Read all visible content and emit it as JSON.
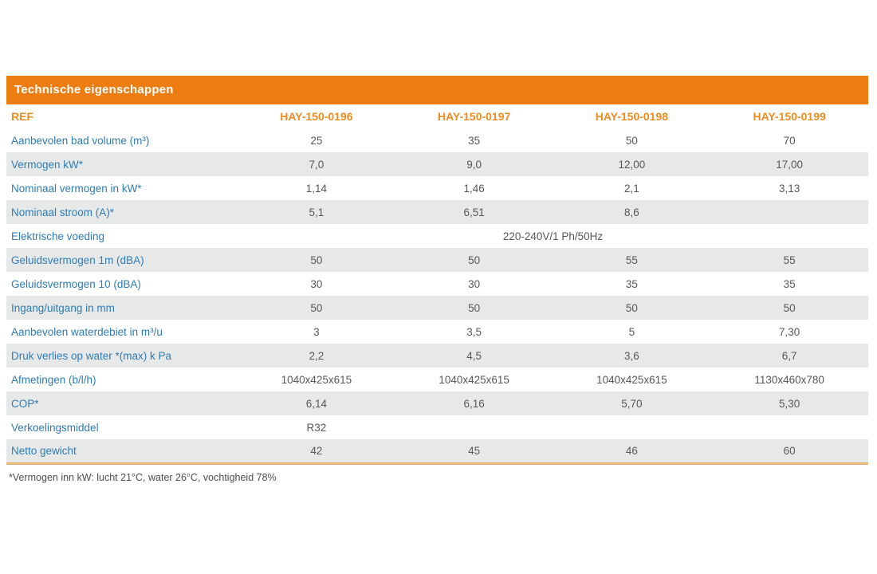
{
  "colors": {
    "header_bar_bg": "#ee7d11",
    "header_bar_text": "#ffffff",
    "column_header_text": "#ef8c1f",
    "row_label_text": "#2e7cb5",
    "value_text": "#55575a",
    "alt_row_bg": "#e7e9e9",
    "table_bottom_border": "#e9b476"
  },
  "table": {
    "title": "Technische eigenschappen",
    "ref_label": "REF",
    "columns": [
      "HAY-150-0196",
      "HAY-150-0197",
      "HAY-150-0198",
      "HAY-150-0199"
    ],
    "rows": [
      {
        "label": "Aanbevolen bad volume (m³)",
        "values": [
          "25",
          "35",
          "50",
          "70"
        ]
      },
      {
        "label": "Vermogen kW*",
        "values": [
          "7,0",
          "9,0",
          "12,00",
          "17,00"
        ]
      },
      {
        "label": "Nominaal vermogen in kW*",
        "values": [
          "1,14",
          "1,46",
          "2,1",
          "3,13"
        ]
      },
      {
        "label": "Nominaal stroom (A)*",
        "values": [
          "5,1",
          "6,51",
          "8,6",
          ""
        ]
      },
      {
        "label": "Elektrische voeding",
        "span_value": "220-240V/1 Ph/50Hz"
      },
      {
        "label": "Geluidsvermogen 1m (dBA)",
        "values": [
          "50",
          "50",
          "55",
          "55"
        ]
      },
      {
        "label": "Geluidsvermogen 10 (dBA)",
        "values": [
          "30",
          "30",
          "35",
          "35"
        ]
      },
      {
        "label": "Ingang/uitgang in mm",
        "values": [
          "50",
          "50",
          "50",
          "50"
        ]
      },
      {
        "label": "Aanbevolen waterdebiet in m³/u",
        "values": [
          "3",
          "3,5",
          "5",
          "7,30"
        ]
      },
      {
        "label": "Druk verlies op water *(max) k Pa",
        "values": [
          "2,2",
          "4,5",
          "3,6",
          "6,7"
        ]
      },
      {
        "label": "Afmetingen (b/l/h)",
        "values": [
          "1040x425x615",
          "1040x425x615",
          "1040x425x615",
          "1130x460x780"
        ]
      },
      {
        "label": "COP*",
        "values": [
          "6,14",
          "6,16",
          "5,70",
          "5,30"
        ]
      },
      {
        "label": "Verkoelingsmiddel",
        "values": [
          "R32",
          "",
          "",
          ""
        ]
      },
      {
        "label": "Netto gewicht",
        "values": [
          "42",
          "45",
          "46",
          "60"
        ]
      }
    ],
    "footnote": "*Vermogen inn kW: lucht 21°C, water 26°C, vochtigheid 78%"
  }
}
